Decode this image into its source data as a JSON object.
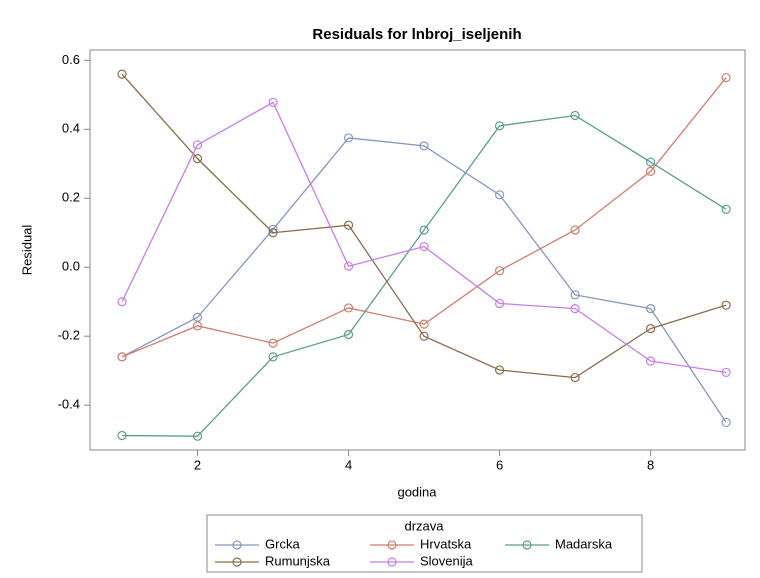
{
  "chart_data": {
    "type": "line",
    "title": "Residuals for lnbroj_iseljenih",
    "x_label": "godina",
    "y_label": "Residual",
    "legend_title": "drzava",
    "x": [
      1,
      2,
      3,
      4,
      5,
      6,
      7,
      8,
      9
    ],
    "series": [
      {
        "name": "Grcka",
        "color": "#8596c0",
        "values": [
          -0.26,
          -0.145,
          0.11,
          0.375,
          0.352,
          0.21,
          -0.08,
          -0.12,
          -0.45
        ]
      },
      {
        "name": "Hrvatska",
        "color": "#d07e6e",
        "values": [
          -0.26,
          -0.17,
          -0.22,
          -0.118,
          -0.165,
          -0.01,
          0.108,
          0.278,
          0.55
        ]
      },
      {
        "name": "Madarska",
        "color": "#5a9e8e",
        "values": [
          -0.488,
          -0.49,
          -0.26,
          -0.195,
          0.108,
          0.41,
          0.44,
          0.305,
          0.168
        ]
      },
      {
        "name": "Rumunjska",
        "color": "#8a6d4a",
        "values": [
          0.56,
          0.315,
          0.1,
          0.122,
          -0.2,
          -0.298,
          -0.32,
          -0.178,
          -0.11
        ]
      },
      {
        "name": "Slovenija",
        "color": "#c77de8",
        "values": [
          -0.1,
          0.355,
          0.478,
          0.003,
          0.06,
          -0.105,
          -0.12,
          -0.272,
          -0.305
        ]
      }
    ],
    "xlim": [
      0.576,
      9.25
    ],
    "ylim": [
      -0.53,
      0.63
    ],
    "xticks": [
      2,
      4,
      6,
      8
    ],
    "yticks": [
      -0.4,
      -0.2,
      {
        "value": 0,
        "label": "0.0"
      },
      0.2,
      0.4,
      0.6
    ]
  }
}
